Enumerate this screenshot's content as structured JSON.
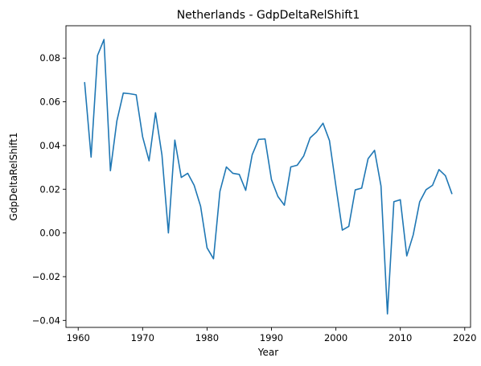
{
  "chart_data": {
    "type": "line",
    "title": "Netherlands - GdpDeltaRelShift1",
    "xlabel": "Year",
    "ylabel": "GdpDeltaRelShift1",
    "xlim": [
      1958.1,
      2020.9
    ],
    "ylim": [
      -0.0432,
      0.0948
    ],
    "x_ticks": [
      1960,
      1970,
      1980,
      1990,
      2000,
      2010,
      2020
    ],
    "y_ticks": [
      -0.04,
      -0.02,
      0.0,
      0.02,
      0.04,
      0.06,
      0.08
    ],
    "x_tick_labels": [
      "1960",
      "1970",
      "1980",
      "1990",
      "2000",
      "2010",
      "2020"
    ],
    "y_tick_labels": [
      "−0.04",
      "−0.02",
      "0.00",
      "0.02",
      "0.04",
      "0.06",
      "0.08"
    ],
    "grid": false,
    "colors": {
      "line": "#1f77b4"
    },
    "series": [
      {
        "x": [
          1961,
          1962,
          1963,
          1964,
          1965,
          1966,
          1967,
          1968,
          1969,
          1970,
          1971,
          1972,
          1973,
          1974,
          1975,
          1976,
          1977,
          1978,
          1979,
          1980,
          1981,
          1982,
          1983,
          1984,
          1985,
          1986,
          1987,
          1988,
          1989,
          1990,
          1991,
          1992,
          1993,
          1994,
          1995,
          1996,
          1997,
          1998,
          1999,
          2000,
          2001,
          2002,
          2003,
          2004,
          2005,
          2006,
          2007,
          2008,
          2009,
          2010,
          2011,
          2012,
          2013,
          2014,
          2015,
          2016,
          2017,
          2018
        ],
        "values": [
          0.0688,
          0.0347,
          0.0812,
          0.0885,
          0.0285,
          0.0512,
          0.064,
          0.0637,
          0.0632,
          0.044,
          0.033,
          0.055,
          0.0357,
          0.0,
          0.0425,
          0.0254,
          0.0273,
          0.0218,
          0.0122,
          -0.0068,
          -0.0118,
          0.019,
          0.0302,
          0.0273,
          0.0268,
          0.0195,
          0.0357,
          0.0428,
          0.043,
          0.0244,
          0.0167,
          0.0127,
          0.0302,
          0.031,
          0.0352,
          0.0435,
          0.0462,
          0.0502,
          0.0423,
          0.0215,
          0.0013,
          0.003,
          0.0197,
          0.0205,
          0.034,
          0.0378,
          0.0215,
          -0.037,
          0.0143,
          0.0152,
          -0.0105,
          -0.0009,
          0.0142,
          0.0198,
          0.0218,
          0.029,
          0.0262,
          0.018
        ]
      }
    ]
  }
}
